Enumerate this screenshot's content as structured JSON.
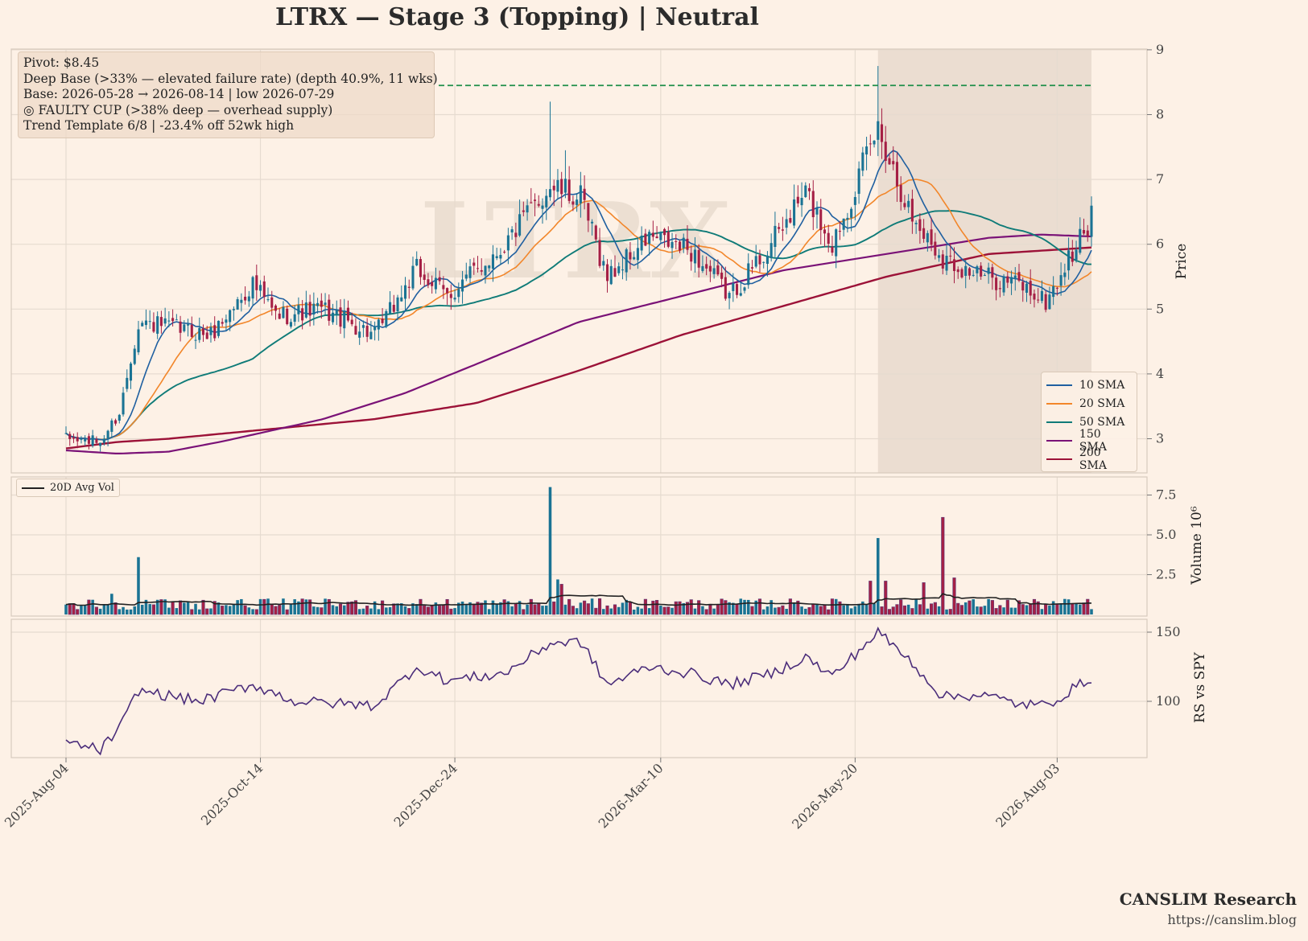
{
  "title": "LTRX  —  Stage 3 (Topping)  |  Neutral",
  "info_box": {
    "lines": [
      "Pivot: $8.45",
      "Deep Base (>33% — elevated failure rate)  (depth 40.9%, 11 wks)",
      "Base: 2026-05-28 → 2026-08-14  |  low 2026-07-29",
      "◎ FAULTY CUP (>38% deep — overhead supply)",
      "Trend Template 6/8  |  -23.4% off 52wk high"
    ]
  },
  "watermark": "LTRX",
  "footer": {
    "brand": "CANSLIM Research",
    "url": "https://canslim.blog"
  },
  "colors": {
    "background": "#fdf1e6",
    "up": "#1a7394",
    "down": "#a51f45",
    "sma10": "#1f5fa0",
    "sma20": "#f2862a",
    "sma50": "#0f7b78",
    "sma150": "#7a1277",
    "sma200": "#9c1238",
    "pivot": "#1f8f4a",
    "rs": "#4b2d7a",
    "avgvol": "#222222",
    "shade": "#e7d9cc"
  },
  "chart_data": [
    {
      "type": "candlestick",
      "panel": "price",
      "ylabel": "Price",
      "yticks": [
        3,
        4,
        5,
        6,
        7,
        8,
        9
      ],
      "ylim": [
        2.5,
        9.1
      ],
      "x_ticks": [
        "2025-Aug-04",
        "2025-Oct-14",
        "2025-Dec-24",
        "2026-Mar-10",
        "2026-May-20",
        "2026-Aug-03"
      ],
      "pivot": 8.45,
      "base_start": "2026-05-28",
      "base_end": "2026-08-14",
      "base_low_date": "2026-07-29",
      "anchors": [
        {
          "date": "2025-08-04",
          "close": 3.0
        },
        {
          "date": "2025-08-15",
          "close": 2.95
        },
        {
          "date": "2025-08-22",
          "close": 3.4
        },
        {
          "date": "2025-08-29",
          "close": 4.8
        },
        {
          "date": "2025-09-12",
          "close": 4.7
        },
        {
          "date": "2025-09-25",
          "close": 4.6
        },
        {
          "date": "2025-10-10",
          "close": 5.4
        },
        {
          "date": "2025-10-20",
          "close": 4.9
        },
        {
          "date": "2025-11-05",
          "close": 5.0
        },
        {
          "date": "2025-11-25",
          "close": 4.6
        },
        {
          "date": "2025-12-10",
          "close": 5.6
        },
        {
          "date": "2025-12-22",
          "close": 5.2
        },
        {
          "date": "2026-01-10",
          "close": 6.0
        },
        {
          "date": "2026-01-28",
          "close": 6.9
        },
        {
          "date": "2026-02-07",
          "close": 6.7
        },
        {
          "date": "2026-02-18",
          "close": 5.5
        },
        {
          "date": "2026-03-05",
          "close": 6.1
        },
        {
          "date": "2026-03-20",
          "close": 5.9
        },
        {
          "date": "2026-04-03",
          "close": 5.2
        },
        {
          "date": "2026-04-20",
          "close": 6.0
        },
        {
          "date": "2026-05-01",
          "close": 6.8
        },
        {
          "date": "2026-05-12",
          "close": 6.0
        },
        {
          "date": "2026-05-28",
          "close": 7.8
        },
        {
          "date": "2026-06-10",
          "close": 6.4
        },
        {
          "date": "2026-06-22",
          "close": 5.8
        },
        {
          "date": "2026-07-05",
          "close": 5.5
        },
        {
          "date": "2026-07-20",
          "close": 5.4
        },
        {
          "date": "2026-07-29",
          "close": 5.1
        },
        {
          "date": "2026-08-14",
          "close": 6.4
        }
      ],
      "volume_spikes": [
        {
          "date": "2025-08-29",
          "volume": 3.6
        },
        {
          "date": "2026-01-28",
          "volume": 8.0
        },
        {
          "date": "2026-05-28",
          "volume": 4.8
        },
        {
          "date": "2026-06-22",
          "volume": 6.1
        },
        {
          "date": "2026-06-25",
          "volume": 2.3
        }
      ],
      "series": [
        {
          "name": "10 SMA",
          "period": 10
        },
        {
          "name": "20 SMA",
          "period": 20
        },
        {
          "name": "50 SMA",
          "period": 50
        },
        {
          "name": "150 SMA",
          "period": 150
        },
        {
          "name": "200 SMA",
          "period": 200
        }
      ],
      "sma_long_anchors": {
        "sma150": [
          [
            0,
            2.82
          ],
          [
            0.05,
            2.77
          ],
          [
            0.1,
            2.8
          ],
          [
            0.15,
            2.95
          ],
          [
            0.25,
            3.3
          ],
          [
            0.33,
            3.7
          ],
          [
            0.4,
            4.15
          ],
          [
            0.5,
            4.8
          ],
          [
            0.6,
            5.2
          ],
          [
            0.7,
            5.6
          ],
          [
            0.8,
            5.85
          ],
          [
            0.9,
            6.1
          ],
          [
            0.95,
            6.15
          ],
          [
            1,
            6.12
          ]
        ],
        "sma200": [
          [
            0,
            2.85
          ],
          [
            0.05,
            2.95
          ],
          [
            0.1,
            3.0
          ],
          [
            0.2,
            3.15
          ],
          [
            0.3,
            3.3
          ],
          [
            0.4,
            3.55
          ],
          [
            0.5,
            4.05
          ],
          [
            0.6,
            4.6
          ],
          [
            0.7,
            5.05
          ],
          [
            0.8,
            5.5
          ],
          [
            0.9,
            5.85
          ],
          [
            1,
            5.95
          ]
        ]
      },
      "legend": {
        "position": "lower right"
      }
    },
    {
      "type": "bar",
      "panel": "volume",
      "ylabel": "Volume  10⁶",
      "yticks": [
        2.5,
        5.0,
        7.5
      ],
      "ylim": [
        0,
        8.2
      ],
      "series": [
        {
          "name": "20D Avg Vol"
        }
      ],
      "legend": {
        "position": "upper left"
      }
    },
    {
      "type": "line",
      "panel": "rs",
      "ylabel": "RS vs SPY",
      "yticks": [
        100,
        150
      ],
      "ylim": [
        60,
        160
      ],
      "anchors": [
        {
          "date": "2025-08-04",
          "value": 70
        },
        {
          "date": "2025-08-15",
          "value": 65
        },
        {
          "date": "2025-08-22",
          "value": 80
        },
        {
          "date": "2025-08-29",
          "value": 108
        },
        {
          "date": "2025-09-20",
          "value": 100
        },
        {
          "date": "2025-10-10",
          "value": 112
        },
        {
          "date": "2025-10-25",
          "value": 100
        },
        {
          "date": "2025-11-25",
          "value": 97
        },
        {
          "date": "2025-12-10",
          "value": 125
        },
        {
          "date": "2025-12-22",
          "value": 115
        },
        {
          "date": "2026-01-10",
          "value": 120
        },
        {
          "date": "2026-01-28",
          "value": 142
        },
        {
          "date": "2026-02-07",
          "value": 143
        },
        {
          "date": "2026-02-18",
          "value": 112
        },
        {
          "date": "2026-03-05",
          "value": 125
        },
        {
          "date": "2026-03-20",
          "value": 120
        },
        {
          "date": "2026-04-03",
          "value": 112
        },
        {
          "date": "2026-04-20",
          "value": 120
        },
        {
          "date": "2026-05-01",
          "value": 132
        },
        {
          "date": "2026-05-12",
          "value": 118
        },
        {
          "date": "2026-05-28",
          "value": 150
        },
        {
          "date": "2026-06-10",
          "value": 128
        },
        {
          "date": "2026-06-22",
          "value": 103
        },
        {
          "date": "2026-07-05",
          "value": 105
        },
        {
          "date": "2026-07-20",
          "value": 98
        },
        {
          "date": "2026-07-29",
          "value": 97
        },
        {
          "date": "2026-08-14",
          "value": 117
        }
      ]
    }
  ]
}
